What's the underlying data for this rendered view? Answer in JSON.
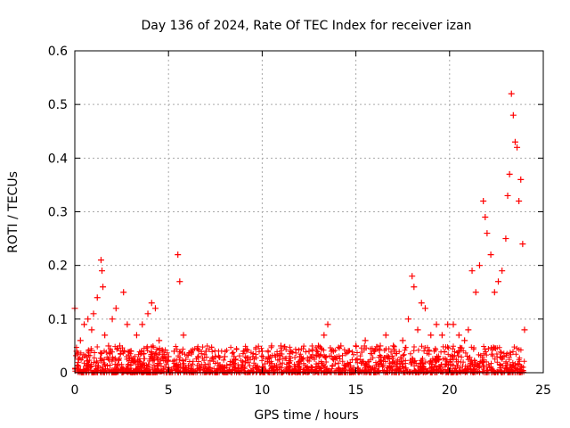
{
  "chart_data": {
    "type": "scatter",
    "title": "Day 136 of 2024, Rate Of TEC Index for receiver izan",
    "xlabel": "GPS time / hours",
    "ylabel": "ROTI / TECUs",
    "xlim": [
      0,
      25
    ],
    "ylim": [
      0,
      0.6
    ],
    "xticks": [
      "0",
      "5",
      "10",
      "15",
      "20",
      "25"
    ],
    "yticks": [
      "0",
      "0.1",
      "0.2",
      "0.3",
      "0.4",
      "0.5",
      "0.6"
    ],
    "grid": true,
    "marker": "+",
    "color": "#ff0000",
    "series": [
      {
        "x": [
          0.0,
          0.1,
          0.3,
          0.5,
          0.7,
          0.9,
          1.0,
          1.2,
          1.4,
          1.45,
          1.5,
          1.6,
          1.8,
          2.0,
          2.2,
          2.4,
          2.6,
          2.8,
          3.0,
          3.3,
          3.6,
          3.9,
          4.1,
          4.3,
          4.5,
          4.7,
          5.0,
          5.3,
          5.5,
          5.6,
          5.8,
          6.2,
          6.6,
          7.0,
          7.5,
          8.0,
          8.5,
          9.0,
          9.5,
          10.0,
          10.5,
          11.0,
          11.5,
          12.0,
          12.5,
          13.0,
          13.3,
          13.5,
          13.8,
          14.2,
          14.6,
          15.0,
          15.5,
          16.0,
          16.3,
          16.6,
          17.0,
          17.5,
          17.8,
          18.0,
          18.1,
          18.3,
          18.5,
          18.7,
          19.0,
          19.3,
          19.6,
          19.9,
          20.2,
          20.5,
          20.8,
          21.0,
          21.2,
          21.4,
          21.6,
          21.8,
          21.9,
          22.0,
          22.2,
          22.4,
          22.6,
          22.8,
          23.0,
          23.1,
          23.2,
          23.3,
          23.4,
          23.5,
          23.6,
          23.7,
          23.8,
          23.9,
          24.0
        ],
        "y": [
          0.12,
          0.04,
          0.06,
          0.09,
          0.1,
          0.08,
          0.11,
          0.14,
          0.21,
          0.19,
          0.16,
          0.07,
          0.05,
          0.1,
          0.12,
          0.05,
          0.15,
          0.09,
          0.04,
          0.07,
          0.09,
          0.11,
          0.13,
          0.12,
          0.06,
          0.04,
          0.03,
          0.04,
          0.22,
          0.17,
          0.07,
          0.04,
          0.03,
          0.04,
          0.03,
          0.03,
          0.03,
          0.04,
          0.03,
          0.04,
          0.05,
          0.05,
          0.04,
          0.03,
          0.04,
          0.05,
          0.07,
          0.09,
          0.04,
          0.05,
          0.04,
          0.05,
          0.06,
          0.04,
          0.05,
          0.07,
          0.05,
          0.06,
          0.1,
          0.18,
          0.16,
          0.08,
          0.13,
          0.12,
          0.07,
          0.09,
          0.07,
          0.09,
          0.09,
          0.07,
          0.06,
          0.08,
          0.19,
          0.15,
          0.2,
          0.32,
          0.29,
          0.26,
          0.22,
          0.15,
          0.17,
          0.19,
          0.25,
          0.33,
          0.37,
          0.52,
          0.48,
          0.43,
          0.42,
          0.32,
          0.36,
          0.24,
          0.08
        ]
      }
    ]
  }
}
